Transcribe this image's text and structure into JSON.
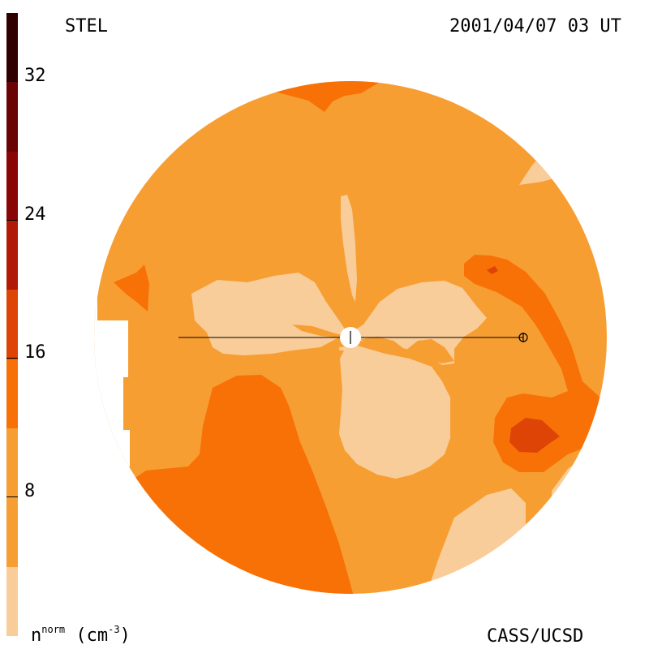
{
  "header": {
    "observatory": "STEL",
    "datetime": "2001/04/07 03 UT"
  },
  "footer": {
    "quantity_base": "n",
    "quantity_sup": "norm",
    "unit_open": " (cm",
    "unit_sup": "-3",
    "unit_close": ")",
    "credit": "CASS/UCSD"
  },
  "colorbar": {
    "ticks": [
      "8",
      "16",
      "24",
      "32"
    ],
    "levels": [
      {
        "max": 4,
        "color": "#f8cd99"
      },
      {
        "max": 8,
        "color": "#f79e33"
      },
      {
        "max": 12,
        "color": "#f77106"
      },
      {
        "max": 16,
        "color": "#dd4406"
      },
      {
        "max": 20,
        "color": "#b01a06"
      },
      {
        "max": 24,
        "color": "#8a0606"
      },
      {
        "max": 28,
        "color": "#6a0404"
      },
      {
        "max": 32,
        "color": "#480202"
      },
      {
        "max": 36,
        "color": "#200000"
      }
    ]
  }
}
